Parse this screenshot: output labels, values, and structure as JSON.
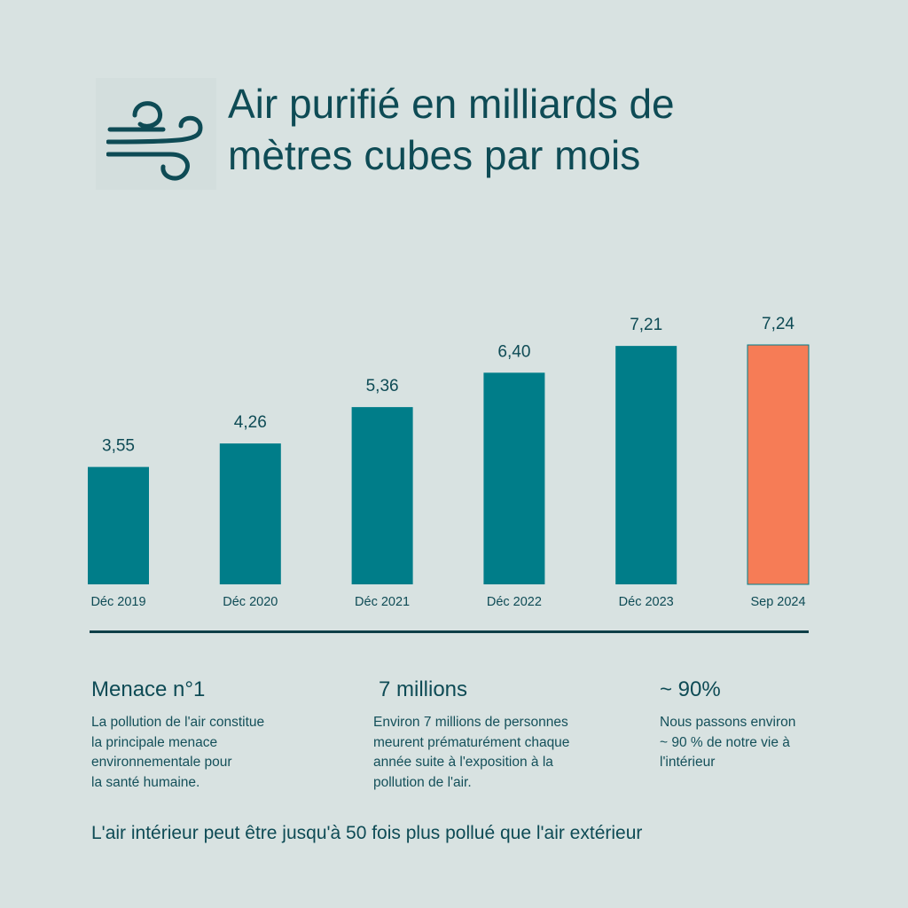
{
  "header": {
    "title_lines": [
      "Air purifié en milliards de",
      "mètres cubes par mois"
    ],
    "icon": "wind-icon"
  },
  "colors": {
    "background": "#d8e2e1",
    "bar": "#007d89",
    "highlight": "#f67c56",
    "text": "#0e4b55"
  },
  "chart_data": {
    "type": "bar",
    "title": "Air purifié en milliards de mètres cubes par mois",
    "categories": [
      "Déc 2019",
      "Déc 2020",
      "Déc 2021",
      "Déc 2022",
      "Déc 2023",
      "Sep 2024"
    ],
    "values": [
      3.55,
      4.26,
      5.36,
      6.4,
      7.21,
      7.24
    ],
    "value_labels": [
      "3,55",
      "4,26",
      "5,36",
      "6,40",
      "7,21",
      "7,24"
    ],
    "highlight_index": 5,
    "xlabel": "",
    "ylabel": "",
    "ylim": [
      0,
      7.24
    ],
    "grid": false
  },
  "stats": [
    {
      "heading": "Menace n°1",
      "text_lines": [
        "La pollution de l'air constitue",
        "la principale menace",
        "environnementale pour",
        "la santé humaine."
      ]
    },
    {
      "heading": "7 millions",
      "text_lines": [
        "Environ 7 millions de personnes",
        "meurent prématurément chaque",
        "année suite à l'exposition à la",
        "pollution de l'air."
      ]
    },
    {
      "heading": "~ 90%",
      "text_lines": [
        "Nous passons environ",
        "~ 90 % de notre vie à",
        "l'intérieur"
      ]
    }
  ],
  "footer": {
    "text": "L'air intérieur peut être jusqu'à 50 fois plus pollué que l'air extérieur"
  }
}
